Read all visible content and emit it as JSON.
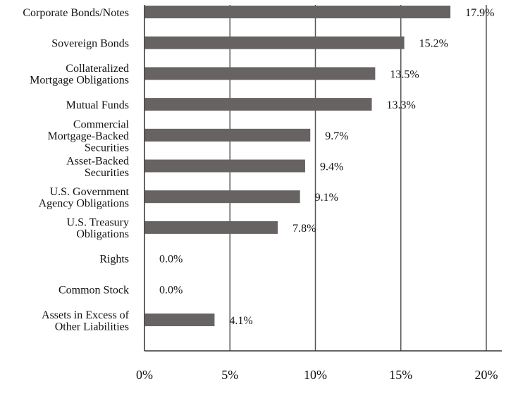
{
  "chart_data": {
    "type": "bar",
    "orientation": "horizontal",
    "categories": [
      [
        "Corporate Bonds/Notes"
      ],
      [
        "Sovereign Bonds"
      ],
      [
        "Collateralized",
        "Mortgage Obligations"
      ],
      [
        "Mutual Funds"
      ],
      [
        "Commercial",
        "Mortgage-Backed",
        "Securities"
      ],
      [
        "Asset-Backed",
        "Securities"
      ],
      [
        "U.S. Government",
        "Agency Obligations"
      ],
      [
        "U.S. Treasury",
        "Obligations"
      ],
      [
        "Rights"
      ],
      [
        "Common Stock"
      ],
      [
        "Assets in Excess of",
        "Other Liabilities"
      ]
    ],
    "values": [
      17.9,
      15.2,
      13.5,
      13.3,
      9.7,
      9.4,
      9.1,
      7.8,
      0.0,
      0.0,
      4.1
    ],
    "value_labels": [
      "17.9%",
      "15.2%",
      "13.5%",
      "13.3%",
      "9.7%",
      "9.4%",
      "9.1%",
      "7.8%",
      "0.0%",
      "0.0%",
      "4.1%"
    ],
    "x_ticks": [
      0,
      5,
      10,
      15,
      20
    ],
    "x_tick_labels": [
      "0%",
      "5%",
      "10%",
      "15%",
      "20%"
    ],
    "xlim": [
      0,
      20
    ],
    "title": "",
    "xlabel": "",
    "ylabel": "",
    "grid": "vertical",
    "legend": "none",
    "bar_color": "#686363",
    "grid_color": "#555555"
  }
}
